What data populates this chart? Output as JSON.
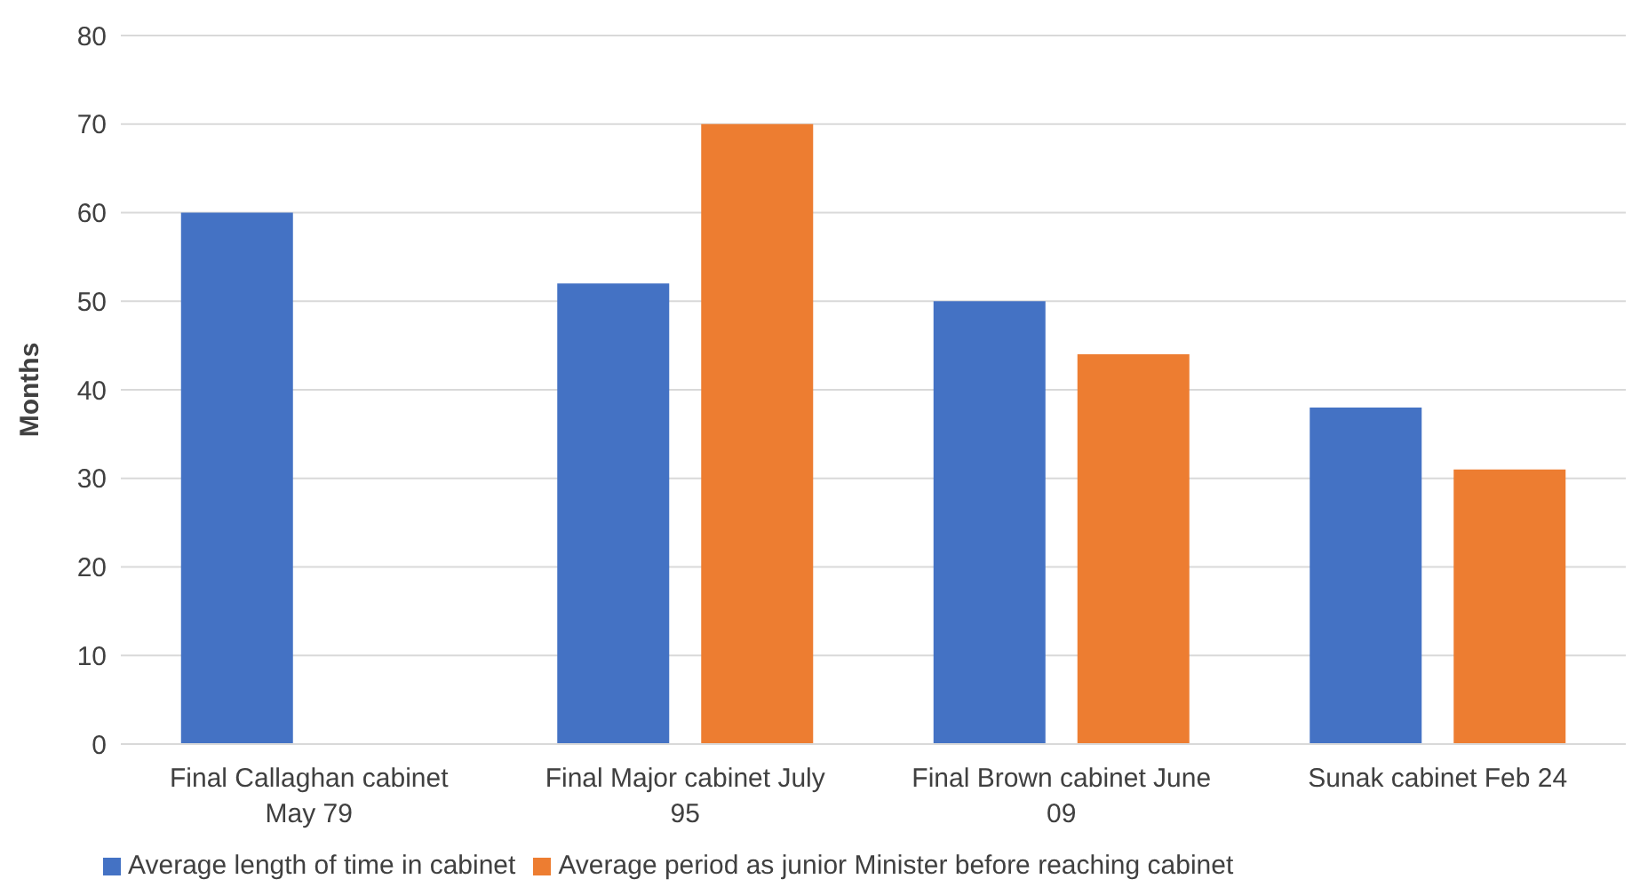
{
  "chart_data": {
    "type": "bar",
    "ylabel": "Months",
    "categories": [
      "Final Callaghan cabinet May 79",
      "Final Major cabinet July 95",
      "Final Brown cabinet June 09",
      "Sunak cabinet Feb 24"
    ],
    "series": [
      {
        "name": "Average length of time in cabinet",
        "color": "#4472c4",
        "values": [
          60,
          52,
          50,
          38
        ]
      },
      {
        "name": "Average period as junior Minister before reaching cabinet",
        "color": "#ed7d31",
        "values": [
          null,
          70,
          44,
          31
        ]
      }
    ],
    "ylim": [
      0,
      80
    ],
    "yticks": [
      0,
      10,
      20,
      30,
      40,
      50,
      60,
      70,
      80
    ],
    "grid": "y",
    "legend": "bottom left"
  }
}
